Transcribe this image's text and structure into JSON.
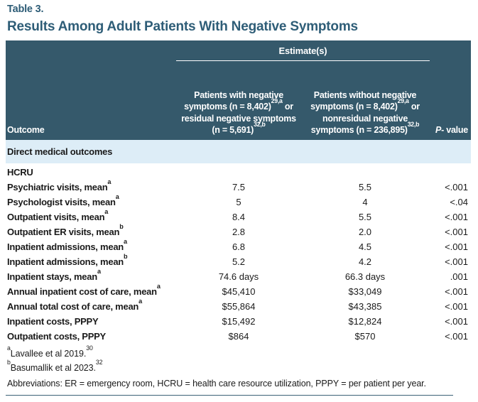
{
  "page": {
    "eyebrow": "Table 3.",
    "title": "Results Among Adult Patients With Negative Symptoms"
  },
  "colors": {
    "header_bg": "#35596b",
    "title_text": "#2e5d77",
    "section_row_bg": "#ddedf7",
    "body_text": "#1a1a1a",
    "rule": "#3c6277"
  },
  "table": {
    "estimates_label": "Estimate(s)",
    "columns": {
      "outcome": "Outcome",
      "group1": {
        "part1": "Patients with negative symptoms (n = 8,402)",
        "sup1": "29,a",
        "part2": " or residual negative symptoms (n = 5,691)",
        "sup2": "32,b"
      },
      "group2": {
        "part1": "Patients without negative symptoms (n = 8,402)",
        "sup1": "29,a",
        "part2": " or nonresidual negative symptoms (n = 236,895)",
        "sup2": "32,b"
      },
      "p_header": {
        "italic": "P",
        "rest": "- value"
      }
    },
    "section_label": "Direct medical outcomes",
    "rows": [
      {
        "label": "HCRU",
        "sup": "",
        "v1": "",
        "v2": "",
        "p": ""
      },
      {
        "label": "Psychiatric visits, mean",
        "sup": "a",
        "v1": "7.5",
        "v2": "5.5",
        "p": "<.001"
      },
      {
        "label": "Psychologist visits, mean",
        "sup": "a",
        "v1": "5",
        "v2": "4",
        "p": "<.04"
      },
      {
        "label": "Outpatient visits, mean",
        "sup": "a",
        "v1": "8.4",
        "v2": "5.5",
        "p": "<.001"
      },
      {
        "label": "Outpatient ER visits, mean",
        "sup": "b",
        "v1": "2.8",
        "v2": "2.0",
        "p": "<.001"
      },
      {
        "label": "Inpatient admissions, mean",
        "sup": "a",
        "v1": "6.8",
        "v2": "4.5",
        "p": "<.001"
      },
      {
        "label": "Inpatient admissions, mean",
        "sup": "b",
        "v1": "5.2",
        "v2": "4.2",
        "p": "<.001"
      },
      {
        "label": "Inpatient stays, mean",
        "sup": "a",
        "v1": "74.6 days",
        "v2": "66.3 days",
        "p": ".001"
      },
      {
        "label": "Annual inpatient cost of care, mean",
        "sup": "a",
        "v1": "$45,410",
        "v2": "$33,049",
        "p": "<.001"
      },
      {
        "label": "Annual total cost of care, mean",
        "sup": "a",
        "v1": "$55,864",
        "v2": "$43,385",
        "p": "<.001"
      },
      {
        "label": "Inpatient costs, PPPY",
        "sup": "",
        "v1": "$15,492",
        "v2": "$12,824",
        "p": "<.001"
      },
      {
        "label": "Outpatient costs, PPPY",
        "sup": "",
        "v1": "$864",
        "v2": "$570",
        "p": "<.001"
      }
    ]
  },
  "footnotes": {
    "fn1": {
      "sup": "a",
      "text": "Lavallee et al 2019.",
      "ref": "30"
    },
    "fn2": {
      "sup": "b",
      "text": "Basumallik et al 2023.",
      "ref": "32"
    },
    "abbreviations": "Abbreviations: ER = emergency room, HCRU = health care resource utilization, PPPY = per patient per year."
  }
}
